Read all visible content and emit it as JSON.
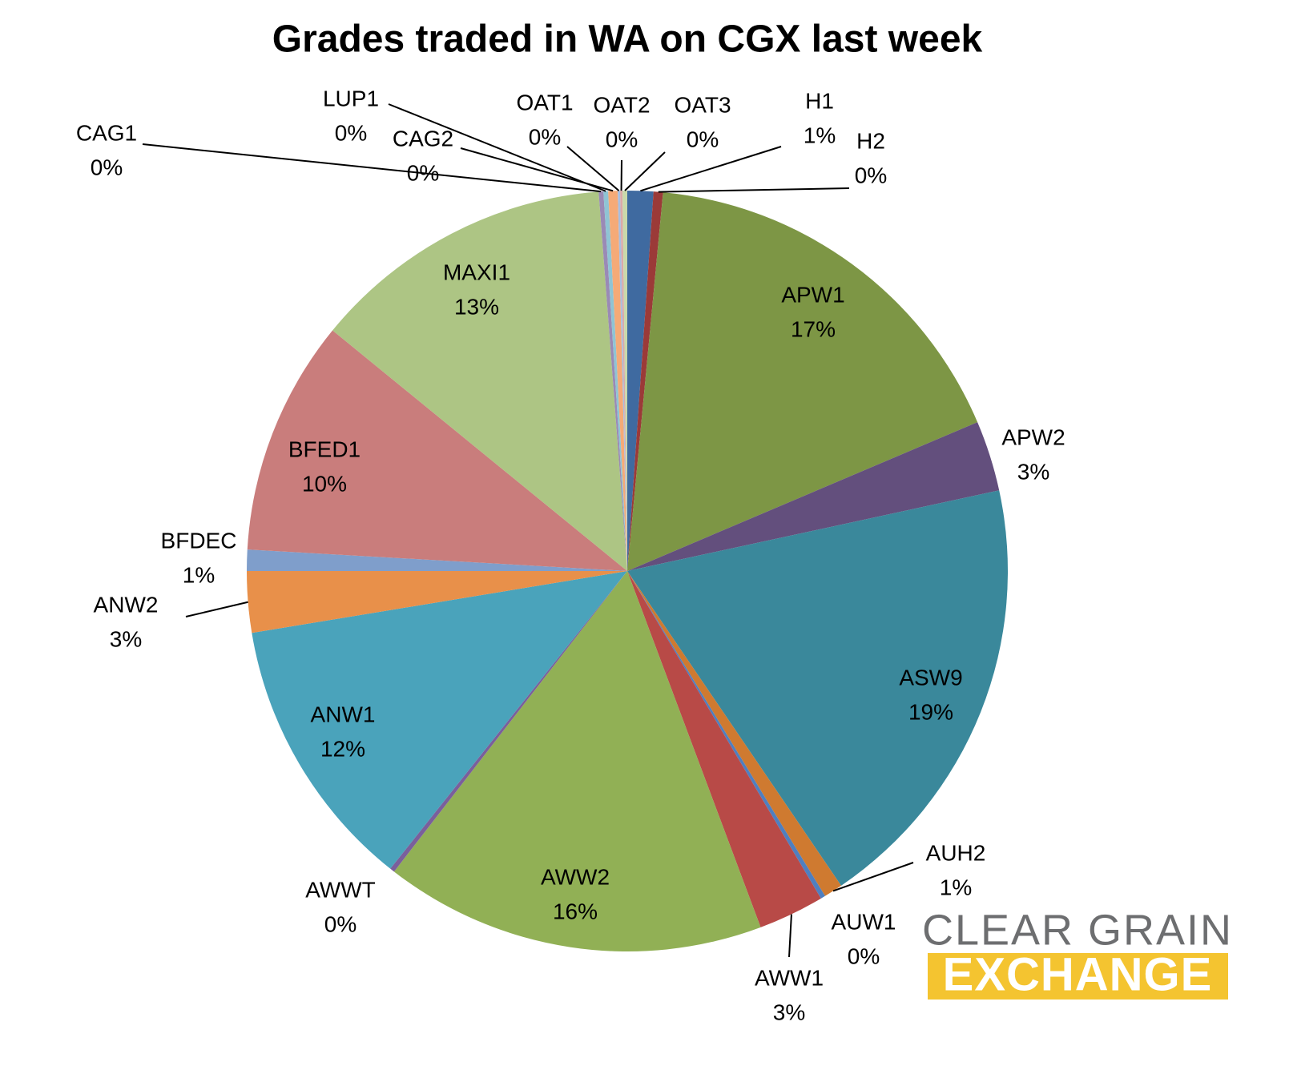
{
  "chart_data": {
    "type": "pie",
    "title": "Grades traded in WA on CGX last week",
    "categories": [
      "H1",
      "H2",
      "APW1",
      "APW2",
      "ASW9",
      "AUH2",
      "AUW1",
      "AWW1",
      "AWW2",
      "AWWT",
      "ANW1",
      "ANW2",
      "BFDEC",
      "BFED1",
      "MAXI1",
      "CAG1",
      "LUP1",
      "CAG2",
      "OAT1",
      "OAT2",
      "OAT3"
    ],
    "values": [
      1.1,
      0.4,
      17.1,
      3.0,
      18.9,
      0.8,
      0.2,
      2.8,
      16.2,
      0.2,
      11.7,
      2.6,
      0.9,
      10.0,
      12.9,
      0.2,
      0.2,
      0.4,
      0.1,
      0.1,
      0.2
    ],
    "value_labels": [
      "1%",
      "0%",
      "17%",
      "3%",
      "19%",
      "1%",
      "0%",
      "3%",
      "16%",
      "0%",
      "12%",
      "3%",
      "1%",
      "10%",
      "13%",
      "0%",
      "0%",
      "0%",
      "0%",
      "0%",
      "0%"
    ],
    "colors": [
      "#3f6aa0",
      "#9b3a38",
      "#7d9645",
      "#634f7d",
      "#3a889b",
      "#cf7a30",
      "#4f7fc0",
      "#b84a47",
      "#91b055",
      "#7a5f9c",
      "#4aa3bb",
      "#e8904a",
      "#7f9ecb",
      "#c97d7c",
      "#adc584",
      "#9a8ab5",
      "#8fc4d4",
      "#f5aa77",
      "#a9bee0",
      "#dba9a8",
      "#c9d9ab"
    ]
  },
  "logo": [
    "CLEAR GRAIN",
    "EXCHANGE"
  ]
}
